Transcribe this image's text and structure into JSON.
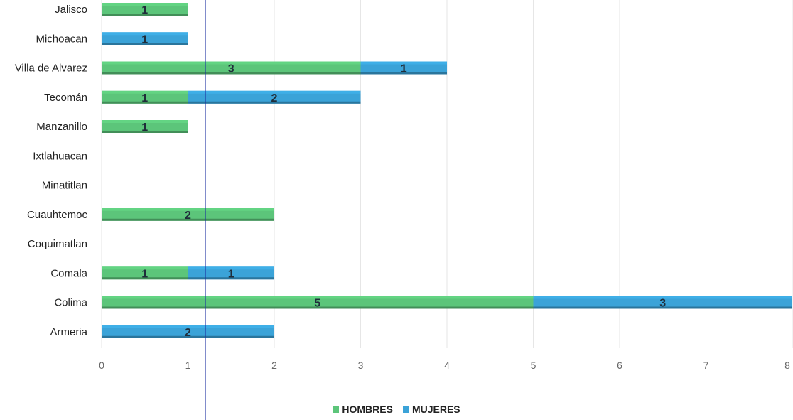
{
  "chart_data": {
    "type": "bar",
    "orientation": "horizontal",
    "stacked": true,
    "categories": [
      "Jalisco",
      "Michoacan",
      "Villa de Alvarez",
      "Tecomán",
      "Manzanillo",
      "Ixtlahuacan",
      "Minatitlan",
      "Cuauhtemoc",
      "Coquimatlan",
      "Comala",
      "Colima",
      "Armeria"
    ],
    "series": [
      {
        "name": "HOMBRES",
        "color": "#5cc57a",
        "values": [
          1,
          0,
          3,
          1,
          1,
          0,
          0,
          2,
          0,
          1,
          5,
          0
        ]
      },
      {
        "name": "MUJERES",
        "color": "#3ba3d8",
        "values": [
          0,
          1,
          1,
          2,
          0,
          0,
          0,
          0,
          0,
          1,
          3,
          2
        ]
      }
    ],
    "x_ticks": [
      "0",
      "1",
      "2",
      "3",
      "4",
      "5",
      "6",
      "7",
      "8"
    ],
    "xlim": [
      0,
      8
    ],
    "grid": true,
    "legend_position": "bottom",
    "reference_line": {
      "x": 1.2,
      "color": "#1a2fa0"
    }
  }
}
